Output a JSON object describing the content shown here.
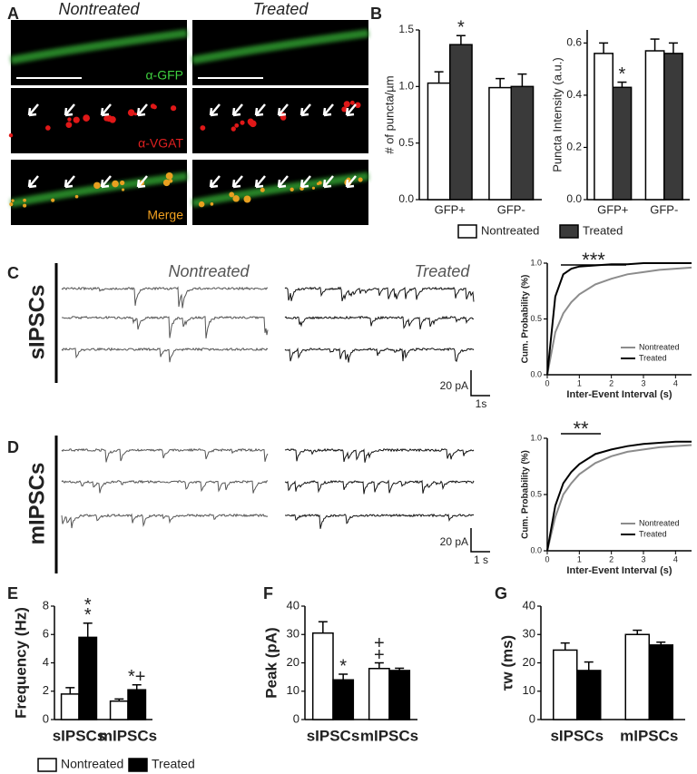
{
  "panel_labels": [
    "A",
    "B",
    "C",
    "D",
    "E",
    "F",
    "G"
  ],
  "images": {
    "columns": [
      "Nontreated",
      "Treated"
    ],
    "stains": [
      "α-GFP",
      "α-VGAT",
      "Merge"
    ]
  },
  "traces": {
    "rows": [
      "sIPSCs",
      "mIPSCs"
    ],
    "columns": [
      "Nontreated",
      "Treated"
    ],
    "scale_bars": [
      [
        "20 pA",
        "1s"
      ],
      [
        "20 pA",
        "1 s"
      ]
    ]
  },
  "chart_data": [
    {
      "type": "bar",
      "ylabel": "# of puncta/µm",
      "categories": [
        "GFP+",
        "GFP-"
      ],
      "series": [
        {
          "color": "#ffffff",
          "values": [
            1.03,
            0.99
          ],
          "errors": [
            0.1,
            0.08
          ]
        },
        {
          "color": "#3a3a3a",
          "values": [
            1.37,
            1.0
          ],
          "errors": [
            0.08,
            0.11
          ]
        }
      ],
      "ylim": [
        0,
        1.5
      ],
      "yticks": [
        {
          "value": 0,
          "label": "0.0"
        },
        {
          "value": 0.5,
          "label": "0.5"
        },
        {
          "value": 1,
          "label": "1.0"
        },
        {
          "value": 1.5,
          "label": "1.5"
        }
      ],
      "annotations": [
        "*"
      ]
    },
    {
      "type": "bar",
      "ylabel": "Puncta Intensity (a.u.)",
      "categories": [
        "GFP+",
        "GFP-"
      ],
      "series": [
        {
          "name": "Nontreated",
          "color": "#ffffff",
          "values": [
            0.56,
            0.57
          ],
          "errors": [
            0.04,
            0.045
          ]
        },
        {
          "name": "Treated",
          "color": "#3a3a3a",
          "values": [
            0.43,
            0.56
          ],
          "errors": [
            0.02,
            0.04
          ]
        }
      ],
      "ylim": [
        0,
        0.65
      ],
      "yticks": [
        {
          "value": 0,
          "label": "0.0"
        },
        {
          "value": 0.2,
          "label": "0.2"
        },
        {
          "value": 0.4,
          "label": "0.4"
        },
        {
          "value": 0.6,
          "label": "0.6"
        }
      ],
      "annotations": [
        "*"
      ]
    },
    {
      "type": "line",
      "ylabel": "Cum. Probability (%)",
      "xlabel": "Inter-Event Interval (s)",
      "x": [
        0,
        0.25,
        0.5,
        0.75,
        1,
        1.5,
        2,
        2.5,
        3,
        3.5,
        4,
        4.5
      ],
      "series": [
        {
          "name": "Nontreated",
          "color": "#8c8c8c",
          "values": [
            0,
            0.38,
            0.55,
            0.65,
            0.72,
            0.81,
            0.86,
            0.9,
            0.92,
            0.94,
            0.95,
            0.96
          ]
        },
        {
          "name": "Treated",
          "color": "#000000",
          "values": [
            0,
            0.7,
            0.9,
            0.95,
            0.97,
            0.98,
            0.99,
            0.99,
            1,
            1,
            1,
            1
          ]
        }
      ],
      "xlim": [
        0,
        4.5
      ],
      "xticks": [
        0,
        1,
        2,
        3,
        4
      ],
      "ylim": [
        0,
        1
      ],
      "yticks": [
        {
          "value": 0,
          "label": "0.0"
        },
        {
          "value": 0.5,
          "label": "0.5"
        },
        {
          "value": 1,
          "label": "1.0"
        }
      ],
      "legend": "lower right",
      "annotations": [
        "***"
      ]
    },
    {
      "type": "line",
      "ylabel": "Cum. Probability (%)",
      "xlabel": "Inter-Event Interval (s)",
      "x": [
        0,
        0.25,
        0.5,
        0.75,
        1,
        1.5,
        2,
        2.5,
        3,
        3.5,
        4,
        4.5
      ],
      "series": [
        {
          "name": "Nontreated",
          "color": "#8c8c8c",
          "values": [
            0,
            0.3,
            0.5,
            0.6,
            0.68,
            0.78,
            0.84,
            0.88,
            0.9,
            0.92,
            0.93,
            0.94
          ]
        },
        {
          "name": "Treated",
          "color": "#000000",
          "values": [
            0,
            0.4,
            0.6,
            0.7,
            0.77,
            0.86,
            0.9,
            0.93,
            0.95,
            0.96,
            0.97,
            0.97
          ]
        }
      ],
      "xlim": [
        0,
        4.5
      ],
      "xticks": [
        0,
        1,
        2,
        3,
        4
      ],
      "ylim": [
        0,
        1
      ],
      "yticks": [
        {
          "value": 0,
          "label": "0.0"
        },
        {
          "value": 0.5,
          "label": "0.5"
        },
        {
          "value": 1,
          "label": "1.0"
        }
      ],
      "legend": "lower right",
      "annotations": [
        "**"
      ]
    },
    {
      "type": "bar",
      "ylabel": "Frequency (Hz)",
      "categories": [
        "sIPSCs",
        "mIPSCs"
      ],
      "series": [
        {
          "name": "Nontreated",
          "color": "#ffffff",
          "values": [
            1.8,
            1.3
          ],
          "errors": [
            0.45,
            0.15
          ]
        },
        {
          "name": "Treated",
          "color": "#000000",
          "values": [
            5.8,
            2.1
          ],
          "errors": [
            1.0,
            0.35
          ]
        }
      ],
      "ylim": [
        0,
        8
      ],
      "yticks": [
        0,
        2,
        4,
        6,
        8
      ],
      "annotations": [
        "*",
        "*",
        "*+"
      ]
    },
    {
      "type": "bar",
      "ylabel": "Peak (pA)",
      "categories": [
        "sIPSCs",
        "mIPSCs"
      ],
      "series": [
        {
          "color": "#ffffff",
          "values": [
            30.5,
            18
          ],
          "errors": [
            4,
            2
          ]
        },
        {
          "color": "#000000",
          "values": [
            14,
            17.3
          ],
          "errors": [
            2,
            0.8
          ]
        }
      ],
      "ylim": [
        0,
        40
      ],
      "yticks": [
        0,
        10,
        20,
        30,
        40
      ],
      "annotations": [
        "*",
        "+",
        "+"
      ]
    },
    {
      "type": "bar",
      "ylabel": "τw (ms)",
      "categories": [
        "sIPSCs",
        "mIPSCs"
      ],
      "series": [
        {
          "color": "#ffffff",
          "values": [
            24.5,
            30
          ],
          "errors": [
            2.5,
            1.5
          ]
        },
        {
          "color": "#000000",
          "values": [
            17.3,
            26.3
          ],
          "errors": [
            3,
            1
          ]
        }
      ],
      "ylim": [
        0,
        40
      ],
      "yticks": [
        0,
        10,
        20,
        30,
        40
      ]
    }
  ]
}
